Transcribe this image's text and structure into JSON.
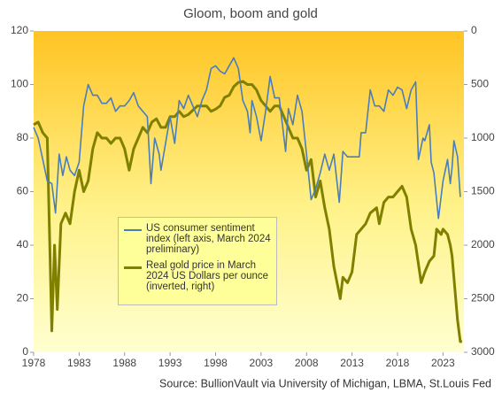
{
  "chart_data": {
    "type": "line",
    "title": "Gloom, boom and gold",
    "source": "Source: BullionVault via University of Michigan, LBMA, St.Louis Fed",
    "xlim": [
      1978,
      2025.3
    ],
    "xticks": [
      1978,
      1983,
      1988,
      1993,
      1998,
      2003,
      2008,
      2013,
      2018,
      2023
    ],
    "ylim": [
      0,
      120
    ],
    "yticks": [
      0,
      20,
      40,
      60,
      80,
      100,
      120
    ],
    "y2lim": [
      3000,
      0
    ],
    "y2ticks": [
      0,
      500,
      1000,
      1500,
      2000,
      2500,
      3000
    ],
    "legend": "center-left",
    "series": [
      {
        "name": "US consumer sentiment index (left axis, March 2024 preliminary)",
        "color": "#4a7ebb",
        "axis": "y",
        "x": [
          1978.0,
          1978.5,
          1979.0,
          1979.5,
          1980.0,
          1980.4,
          1980.8,
          1981.2,
          1981.6,
          1982.0,
          1982.5,
          1983.0,
          1983.5,
          1984.0,
          1984.5,
          1985.0,
          1985.5,
          1986.0,
          1986.5,
          1987.0,
          1987.5,
          1988.0,
          1988.5,
          1989.0,
          1989.5,
          1990.0,
          1990.5,
          1990.9,
          1991.3,
          1991.8,
          1992.0,
          1992.5,
          1993.0,
          1993.5,
          1994.0,
          1994.5,
          1995.0,
          1995.5,
          1996.0,
          1996.5,
          1997.0,
          1997.5,
          1998.0,
          1998.5,
          1999.0,
          1999.5,
          2000.0,
          2000.5,
          2001.0,
          2001.5,
          2001.8,
          2002.0,
          2002.5,
          2003.0,
          2003.5,
          2004.0,
          2004.5,
          2005.0,
          2005.7,
          2006.0,
          2006.5,
          2007.0,
          2007.5,
          2008.0,
          2008.5,
          2009.0,
          2009.5,
          2010.0,
          2010.5,
          2011.0,
          2011.6,
          2012.0,
          2012.5,
          2013.0,
          2013.8,
          2014.0,
          2014.5,
          2015.0,
          2015.5,
          2016.0,
          2016.5,
          2017.0,
          2017.5,
          2018.0,
          2018.5,
          2019.0,
          2019.5,
          2020.0,
          2020.3,
          2020.8,
          2021.0,
          2021.5,
          2021.7,
          2022.0,
          2022.5,
          2023.0,
          2023.5,
          2023.8,
          2024.0,
          2024.2,
          2024.6,
          2024.9
        ],
        "values": [
          84,
          80,
          72,
          64,
          63,
          52,
          74,
          66,
          73,
          68,
          66,
          71,
          92,
          100,
          96,
          96,
          93,
          93,
          95,
          90,
          92,
          92,
          94,
          97,
          92,
          90,
          88,
          63,
          80,
          74,
          68,
          78,
          88,
          78,
          94,
          91,
          96,
          92,
          88,
          94,
          98,
          106,
          107,
          105,
          104,
          107,
          110,
          106,
          94,
          90,
          82,
          94,
          88,
          79,
          90,
          103,
          95,
          95,
          75,
          91,
          85,
          96,
          90,
          74,
          57,
          61,
          67,
          74,
          68,
          74,
          56,
          75,
          73,
          73,
          73,
          82,
          82,
          98,
          92,
          92,
          90,
          98,
          96,
          99,
          98,
          91,
          98,
          101,
          72,
          80,
          79,
          85,
          71,
          67,
          50,
          64,
          72,
          63,
          69,
          79,
          73,
          58
        ]
      },
      {
        "name": "Real gold price in March 2024 US Dollars per ounce (inverted, right)",
        "color": "#808000",
        "axis": "y2",
        "x": [
          1978.0,
          1978.5,
          1979.0,
          1979.5,
          1980.0,
          1980.3,
          1980.6,
          1981.0,
          1981.5,
          1982.0,
          1982.5,
          1983.0,
          1983.5,
          1984.0,
          1984.5,
          1985.0,
          1985.5,
          1986.0,
          1986.5,
          1987.0,
          1987.5,
          1988.0,
          1988.5,
          1989.0,
          1989.5,
          1990.0,
          1990.5,
          1991.0,
          1991.5,
          1992.0,
          1992.5,
          1993.0,
          1993.5,
          1994.0,
          1994.5,
          1995.0,
          1996.0,
          1997.0,
          1997.5,
          1998.0,
          1998.5,
          1999.0,
          1999.5,
          2000.0,
          2000.5,
          2001.0,
          2001.5,
          2002.0,
          2002.5,
          2003.0,
          2004.0,
          2004.5,
          2005.0,
          2005.5,
          2006.0,
          2006.5,
          2007.0,
          2007.5,
          2008.0,
          2008.5,
          2009.0,
          2009.5,
          2010.0,
          2010.5,
          2011.0,
          2011.7,
          2012.0,
          2012.5,
          2013.0,
          2013.5,
          2014.0,
          2014.5,
          2015.0,
          2015.7,
          2016.0,
          2016.5,
          2017.0,
          2017.5,
          2018.0,
          2018.5,
          2019.0,
          2019.5,
          2020.0,
          2020.6,
          2021.0,
          2021.5,
          2022.0,
          2022.3,
          2022.8,
          2023.0,
          2023.5,
          2023.8,
          2024.0,
          2024.3,
          2024.6,
          2024.9,
          2025.1
        ],
        "values": [
          875,
          850,
          950,
          1000,
          2800,
          2000,
          2600,
          1800,
          1700,
          1800,
          1500,
          1300,
          1500,
          1400,
          1100,
          950,
          1000,
          1000,
          1050,
          1000,
          1000,
          1100,
          1300,
          1100,
          1000,
          900,
          950,
          850,
          820,
          900,
          900,
          800,
          800,
          750,
          800,
          780,
          700,
          700,
          750,
          730,
          700,
          620,
          600,
          520,
          480,
          470,
          500,
          500,
          550,
          650,
          750,
          700,
          700,
          800,
          900,
          1000,
          1000,
          1100,
          1300,
          1200,
          1550,
          1400,
          1650,
          1850,
          2200,
          2500,
          2300,
          2350,
          2250,
          1900,
          1850,
          1800,
          1700,
          1650,
          1800,
          1600,
          1550,
          1550,
          1500,
          1450,
          1550,
          1850,
          2000,
          2350,
          2250,
          2150,
          2100,
          1850,
          1900,
          1850,
          1900,
          2000,
          2100,
          2400,
          2700,
          2900,
          2900
        ]
      }
    ]
  }
}
